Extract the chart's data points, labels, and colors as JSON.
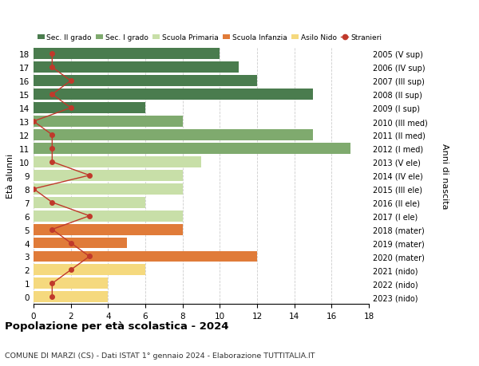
{
  "ages": [
    18,
    17,
    16,
    15,
    14,
    13,
    12,
    11,
    10,
    9,
    8,
    7,
    6,
    5,
    4,
    3,
    2,
    1,
    0
  ],
  "years": [
    "2005 (V sup)",
    "2006 (IV sup)",
    "2007 (III sup)",
    "2008 (II sup)",
    "2009 (I sup)",
    "2010 (III med)",
    "2011 (II med)",
    "2012 (I med)",
    "2013 (V ele)",
    "2014 (IV ele)",
    "2015 (III ele)",
    "2016 (II ele)",
    "2017 (I ele)",
    "2018 (mater)",
    "2019 (mater)",
    "2020 (mater)",
    "2021 (nido)",
    "2022 (nido)",
    "2023 (nido)"
  ],
  "bar_values": [
    10,
    11,
    12,
    15,
    6,
    8,
    15,
    17,
    9,
    8,
    8,
    6,
    8,
    8,
    5,
    12,
    6,
    4,
    4
  ],
  "bar_colors": [
    "#4a7c4e",
    "#4a7c4e",
    "#4a7c4e",
    "#4a7c4e",
    "#4a7c4e",
    "#7faa6e",
    "#7faa6e",
    "#7faa6e",
    "#c8dfa8",
    "#c8dfa8",
    "#c8dfa8",
    "#c8dfa8",
    "#c8dfa8",
    "#e07b39",
    "#e07b39",
    "#e07b39",
    "#f5d97e",
    "#f5d97e",
    "#f5d97e"
  ],
  "stranieri_values": [
    1,
    1,
    2,
    1,
    2,
    0,
    1,
    1,
    1,
    3,
    0,
    1,
    3,
    1,
    2,
    3,
    2,
    1,
    1
  ],
  "legend_labels": [
    "Sec. II grado",
    "Sec. I grado",
    "Scuola Primaria",
    "Scuola Infanzia",
    "Asilo Nido",
    "Stranieri"
  ],
  "legend_colors": [
    "#4a7c4e",
    "#7faa6e",
    "#c8dfa8",
    "#e07b39",
    "#f5d97e",
    "#c0392b"
  ],
  "ylabel_left": "Età alunni",
  "ylabel_right": "Anni di nascita",
  "xlim": [
    0,
    18
  ],
  "title": "Popolazione per età scolastica - 2024",
  "subtitle": "COMUNE DI MARZI (CS) - Dati ISTAT 1° gennaio 2024 - Elaborazione TUTTITALIA.IT",
  "stranieri_color": "#c0392b",
  "background_color": "#ffffff",
  "grid_color": "#cccccc"
}
